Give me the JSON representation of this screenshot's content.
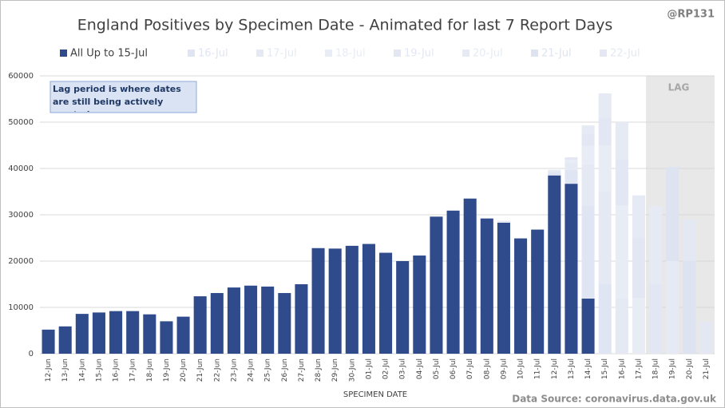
{
  "chart_data": {
    "type": "bar",
    "title": "England Positives by Specimen Date - Animated for last 7 Report Days",
    "handle": "@RP131",
    "annotation": "Lag period is where dates are still being actively reorted.",
    "lag_label": "LAG",
    "x_label": "SPECIMEN DATE",
    "source": "Data Source: coronavirus.data.gov.uk",
    "stacked": true,
    "grid": true,
    "categories": [
      "12-Jun",
      "13-Jun",
      "14-Jun",
      "15-Jun",
      "16-Jun",
      "17-Jun",
      "18-Jun",
      "19-Jun",
      "20-Jun",
      "21-Jun",
      "22-Jun",
      "23-Jun",
      "24-Jun",
      "25-Jun",
      "26-Jun",
      "27-Jun",
      "28-Jun",
      "29-Jun",
      "30-Jun",
      "01-Jul",
      "02-Jul",
      "03-Jul",
      "04-Jul",
      "05-Jul",
      "06-Jul",
      "07-Jul",
      "08-Jul",
      "09-Jul",
      "10-Jul",
      "11-Jul",
      "12-Jul",
      "13-Jul",
      "14-Jul",
      "15-Jul",
      "16-Jul",
      "17-Jul",
      "18-Jul",
      "19-Jul",
      "20-Jul",
      "21-Jul"
    ],
    "series": [
      {
        "name": "All Up to 15-Jul",
        "color": "#2f4b8c",
        "values": [
          5200,
          5900,
          8600,
          8900,
          9200,
          9200,
          8500,
          7000,
          8000,
          12400,
          13100,
          14300,
          14700,
          14500,
          13100,
          15000,
          22800,
          22700,
          23300,
          23700,
          21800,
          20000,
          21200,
          29600,
          30900,
          33500,
          29200,
          28300,
          24900,
          26800,
          38500,
          36700,
          11900,
          null,
          null,
          null,
          null,
          null,
          null,
          null
        ]
      },
      {
        "name": "16-Jul",
        "color": "#dfe5f2",
        "values": [
          null,
          null,
          null,
          null,
          null,
          null,
          null,
          null,
          null,
          null,
          null,
          null,
          null,
          null,
          null,
          null,
          null,
          null,
          null,
          null,
          null,
          null,
          null,
          null,
          null,
          null,
          null,
          null,
          null,
          null,
          800,
          3000,
          20000,
          15000,
          null,
          null,
          null,
          null,
          null,
          null
        ]
      },
      {
        "name": "17-Jul",
        "color": "#e4e9f4",
        "values": [
          null,
          null,
          null,
          null,
          null,
          null,
          null,
          null,
          null,
          null,
          null,
          null,
          null,
          null,
          null,
          null,
          null,
          null,
          null,
          null,
          null,
          null,
          null,
          null,
          null,
          null,
          null,
          400,
          null,
          null,
          400,
          1500,
          9000,
          20000,
          12000,
          null,
          null,
          null,
          null,
          null
        ]
      },
      {
        "name": "18-Jul",
        "color": "#e8ecf5",
        "values": [
          null,
          null,
          null,
          null,
          null,
          null,
          null,
          null,
          null,
          null,
          null,
          null,
          null,
          null,
          null,
          null,
          null,
          null,
          null,
          null,
          null,
          null,
          null,
          null,
          null,
          null,
          null,
          null,
          null,
          null,
          null,
          700,
          4000,
          10000,
          20000,
          12000,
          null,
          null,
          null,
          null
        ]
      },
      {
        "name": "19-Jul",
        "color": "#e2e7f3",
        "values": [
          null,
          null,
          null,
          null,
          null,
          null,
          null,
          null,
          null,
          null,
          null,
          null,
          null,
          null,
          null,
          null,
          null,
          null,
          null,
          null,
          null,
          null,
          null,
          null,
          null,
          null,
          null,
          null,
          null,
          null,
          null,
          500,
          2500,
          6000,
          10000,
          13000,
          15000,
          null,
          null,
          null
        ]
      },
      {
        "name": "20-Jul",
        "color": "#e6eaf4",
        "values": [
          null,
          null,
          null,
          null,
          null,
          null,
          null,
          null,
          null,
          null,
          null,
          null,
          null,
          null,
          null,
          null,
          null,
          null,
          null,
          null,
          null,
          null,
          null,
          null,
          null,
          null,
          null,
          null,
          null,
          null,
          null,
          null,
          1900,
          5200,
          8000,
          9200,
          16800,
          20000,
          null,
          null
        ]
      },
      {
        "name": "21-Jul",
        "color": "#dde3f0",
        "values": [
          null,
          null,
          null,
          null,
          null,
          null,
          null,
          null,
          null,
          null,
          null,
          null,
          null,
          null,
          null,
          null,
          null,
          null,
          null,
          null,
          null,
          null,
          null,
          null,
          null,
          null,
          null,
          null,
          null,
          null,
          null,
          null,
          null,
          null,
          null,
          null,
          null,
          20300,
          20000,
          null
        ]
      },
      {
        "name": "22-Jul",
        "color": "#e3e8f3",
        "values": [
          null,
          null,
          null,
          null,
          null,
          null,
          null,
          null,
          null,
          null,
          null,
          null,
          null,
          null,
          null,
          null,
          null,
          null,
          null,
          null,
          null,
          null,
          null,
          null,
          null,
          null,
          null,
          null,
          null,
          null,
          null,
          null,
          null,
          null,
          null,
          null,
          null,
          null,
          9000,
          6900
        ]
      }
    ],
    "ylim": [
      0,
      60000
    ],
    "yticks": [
      0,
      10000,
      20000,
      30000,
      40000,
      50000,
      60000
    ]
  }
}
